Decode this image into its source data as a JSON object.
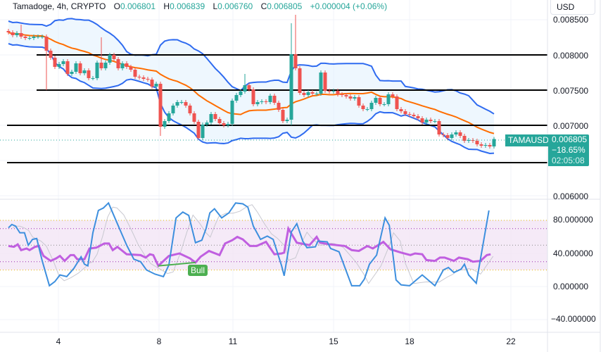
{
  "header": {
    "symbol_line": "Tamadoge, 4h, CRYPTO",
    "o_label": "O",
    "o_value": "0.006801",
    "h_label": "H",
    "h_value": "0.006839",
    "l_label": "L",
    "l_value": "0.006760",
    "c_label": "C",
    "c_value": "0.006805",
    "change": "+0.000004 (+0.06%)"
  },
  "currency_button": "USD",
  "price_axis": [
    "0.008500",
    "0.008000",
    "0.007500",
    "0.007000",
    "0.006000"
  ],
  "osc_axis": [
    "80.000000",
    "40.000000",
    "0.000000",
    "−40.000000"
  ],
  "time_axis": [
    "4",
    "8",
    "11",
    "15",
    "18",
    "22"
  ],
  "symbol_tag": "TAMAUSD",
  "last_price": {
    "price": "0.006805",
    "change": "−18.65%",
    "countdown": "02:05:08"
  },
  "signal_label": "Bull",
  "colors": {
    "up": "#26a69a",
    "down": "#ef5350",
    "band": "#2f6bf0",
    "basis": "#ff6d00",
    "stoch": "#3d8fde",
    "rsi": "#c05fe0",
    "bull": "#4caf50"
  },
  "chart_data": {
    "type": "candlestick",
    "timeframe": "4h",
    "price_range": [
      0.0059,
      0.0086
    ],
    "horizontal_levels": [
      0.008,
      0.0075,
      0.007,
      0.00647
    ],
    "first_open": 0.00834,
    "closes": [
      0.00832,
      0.00828,
      0.00831,
      0.00826,
      0.00824,
      0.00824,
      0.00826,
      0.00826,
      0.00826,
      0.00806,
      0.00796,
      0.00783,
      0.00787,
      0.00791,
      0.00773,
      0.00776,
      0.00788,
      0.00774,
      0.00778,
      0.00767,
      0.00767,
      0.00789,
      0.00781,
      0.00789,
      0.008,
      0.00794,
      0.00781,
      0.00788,
      0.00783,
      0.00779,
      0.00769,
      0.00768,
      0.00766,
      0.00765,
      0.00755,
      0.00759,
      0.00698,
      0.00706,
      0.00717,
      0.00728,
      0.00733,
      0.00733,
      0.00728,
      0.00717,
      0.00705,
      0.00682,
      0.00701,
      0.00704,
      0.00716,
      0.00709,
      0.00703,
      0.007,
      0.00702,
      0.00735,
      0.00743,
      0.00748,
      0.00757,
      0.00751,
      0.0073,
      0.00733,
      0.00734,
      0.00733,
      0.00742,
      0.00732,
      0.00722,
      0.00706,
      0.00708,
      0.00801,
      0.00781,
      0.00746,
      0.00743,
      0.00747,
      0.00745,
      0.00745,
      0.00775,
      0.00749,
      0.00748,
      0.00749,
      0.00744,
      0.00743,
      0.00741,
      0.00738,
      0.0074,
      0.00728,
      0.00723,
      0.00723,
      0.00732,
      0.00739,
      0.0073,
      0.0073,
      0.00744,
      0.00741,
      0.00723,
      0.0072,
      0.00716,
      0.00715,
      0.00713,
      0.0071,
      0.00704,
      0.00708,
      0.00706,
      0.00706,
      0.00687,
      0.00686,
      0.00682,
      0.00687,
      0.0069,
      0.00685,
      0.00678,
      0.00679,
      0.00678,
      0.00673,
      0.00671,
      0.00672,
      0.0067,
      0.006805
    ],
    "wick_overrides": [
      [
        3,
        0.00843,
        null
      ],
      [
        9,
        null,
        0.0075
      ],
      [
        22,
        0.00825,
        null
      ],
      [
        36,
        null,
        0.00685
      ],
      [
        45,
        null,
        0.0068
      ],
      [
        56,
        0.00773,
        null
      ],
      [
        67,
        0.00845,
        0.007
      ],
      [
        68,
        0.00857,
        null
      ]
    ],
    "bollinger": {
      "length": 20,
      "mult": 2
    },
    "oscillator": {
      "range": [
        -50,
        105
      ],
      "bands": {
        "upper": 80,
        "lower": 20,
        "mid": 50,
        "inner_upper": 70,
        "inner_lower": 30
      },
      "stoch": [
        [
          0,
          71
        ],
        [
          0.8,
          75
        ],
        [
          1.7,
          73
        ],
        [
          2.7,
          65
        ],
        [
          3.8,
          65
        ],
        [
          4.7,
          50
        ],
        [
          5.7,
          57
        ],
        [
          6.7,
          58
        ],
        [
          8,
          31
        ],
        [
          9.7,
          1
        ],
        [
          11,
          6
        ],
        [
          12.2,
          14
        ],
        [
          13.8,
          12
        ],
        [
          15.5,
          22
        ],
        [
          17.2,
          36
        ],
        [
          18,
          27
        ],
        [
          18.8,
          25
        ],
        [
          20,
          65
        ],
        [
          21.3,
          92
        ],
        [
          22.5,
          95
        ],
        [
          23.7,
          101
        ],
        [
          24.7,
          89
        ],
        [
          26.3,
          70
        ],
        [
          28,
          50
        ],
        [
          29.7,
          33
        ],
        [
          31.3,
          30
        ],
        [
          32.7,
          20
        ],
        [
          34.7,
          15
        ],
        [
          36.7,
          12
        ],
        [
          38,
          26
        ],
        [
          39.7,
          83
        ],
        [
          41.3,
          90
        ],
        [
          42.7,
          86
        ],
        [
          44.3,
          53
        ],
        [
          45.8,
          56
        ],
        [
          46.8,
          70
        ],
        [
          47.7,
          89
        ],
        [
          48.8,
          94
        ],
        [
          50.5,
          83
        ],
        [
          52.2,
          89
        ],
        [
          53.8,
          101
        ],
        [
          55.5,
          100
        ],
        [
          56.7,
          96
        ],
        [
          58,
          73
        ],
        [
          59.7,
          57
        ],
        [
          61.3,
          61
        ],
        [
          62.7,
          57
        ],
        [
          64.7,
          25
        ],
        [
          65.3,
          13
        ],
        [
          67,
          66
        ],
        [
          68.3,
          76
        ],
        [
          69.7,
          55
        ],
        [
          70.7,
          47
        ],
        [
          72.7,
          48
        ],
        [
          73.3,
          55
        ],
        [
          75.5,
          54
        ],
        [
          76.3,
          46
        ],
        [
          78.3,
          42
        ],
        [
          81.3,
          1
        ],
        [
          83.2,
          1
        ],
        [
          84.3,
          9
        ],
        [
          85.5,
          27
        ],
        [
          87.2,
          38
        ],
        [
          89.2,
          83
        ],
        [
          90.2,
          74
        ],
        [
          91.8,
          8
        ],
        [
          93,
          2
        ],
        [
          95,
          1
        ],
        [
          98,
          14
        ],
        [
          101,
          1
        ],
        [
          103,
          20
        ],
        [
          104.2,
          23
        ],
        [
          105.5,
          17
        ],
        [
          107.2,
          21
        ],
        [
          108,
          27
        ],
        [
          109,
          14
        ],
        [
          110.8,
          4
        ],
        [
          113.8,
          92
        ]
      ],
      "rsi": [
        [
          0,
          49
        ],
        [
          1.3,
          48
        ],
        [
          2.2,
          51
        ],
        [
          3,
          44
        ],
        [
          4.3,
          46
        ],
        [
          5,
          44
        ],
        [
          6.3,
          48
        ],
        [
          7.2,
          49
        ],
        [
          8.3,
          37
        ],
        [
          10,
          31
        ],
        [
          11.3,
          34
        ],
        [
          12.2,
          37
        ],
        [
          13.3,
          31
        ],
        [
          14.7,
          38
        ],
        [
          15.5,
          38
        ],
        [
          16.3,
          33
        ],
        [
          18,
          33
        ],
        [
          19.2,
          46
        ],
        [
          20.8,
          47
        ],
        [
          22.7,
          52
        ],
        [
          23.8,
          52
        ],
        [
          24.7,
          44
        ],
        [
          25.8,
          48
        ],
        [
          28,
          39
        ],
        [
          31.3,
          38
        ],
        [
          32.5,
          35
        ],
        [
          33.5,
          39
        ],
        [
          34.3,
          38
        ],
        [
          35.5,
          25
        ],
        [
          38,
          37
        ],
        [
          40.5,
          40
        ],
        [
          43,
          34
        ],
        [
          44.3,
          29
        ],
        [
          45.5,
          36
        ],
        [
          47.5,
          43
        ],
        [
          50,
          38
        ],
        [
          51.3,
          52
        ],
        [
          53,
          56
        ],
        [
          54.2,
          60
        ],
        [
          55.5,
          57
        ],
        [
          57.2,
          49
        ],
        [
          58.8,
          49
        ],
        [
          61,
          54
        ],
        [
          63,
          39
        ],
        [
          64.7,
          40
        ],
        [
          65.3,
          41
        ],
        [
          66.3,
          70
        ],
        [
          68.3,
          53
        ],
        [
          71.3,
          50
        ],
        [
          73,
          60
        ],
        [
          73.8,
          53
        ],
        [
          76,
          51
        ],
        [
          79.7,
          49
        ],
        [
          81.3,
          44
        ],
        [
          83,
          43
        ],
        [
          85,
          49
        ],
        [
          86.3,
          46
        ],
        [
          88.8,
          54
        ],
        [
          90.5,
          45
        ],
        [
          93,
          41
        ],
        [
          95.2,
          38
        ],
        [
          96.3,
          40
        ],
        [
          98,
          39
        ],
        [
          99,
          32
        ],
        [
          101,
          31
        ],
        [
          102.2,
          35
        ],
        [
          103.3,
          35
        ],
        [
          105.5,
          31
        ],
        [
          106.7,
          35
        ],
        [
          108.8,
          33
        ],
        [
          110,
          30
        ],
        [
          111.8,
          31
        ],
        [
          113.3,
          38
        ],
        [
          114.2,
          39
        ]
      ],
      "divergence": {
        "from": [
          35.5,
          25
        ],
        "to": [
          44.3,
          29
        ]
      }
    }
  }
}
